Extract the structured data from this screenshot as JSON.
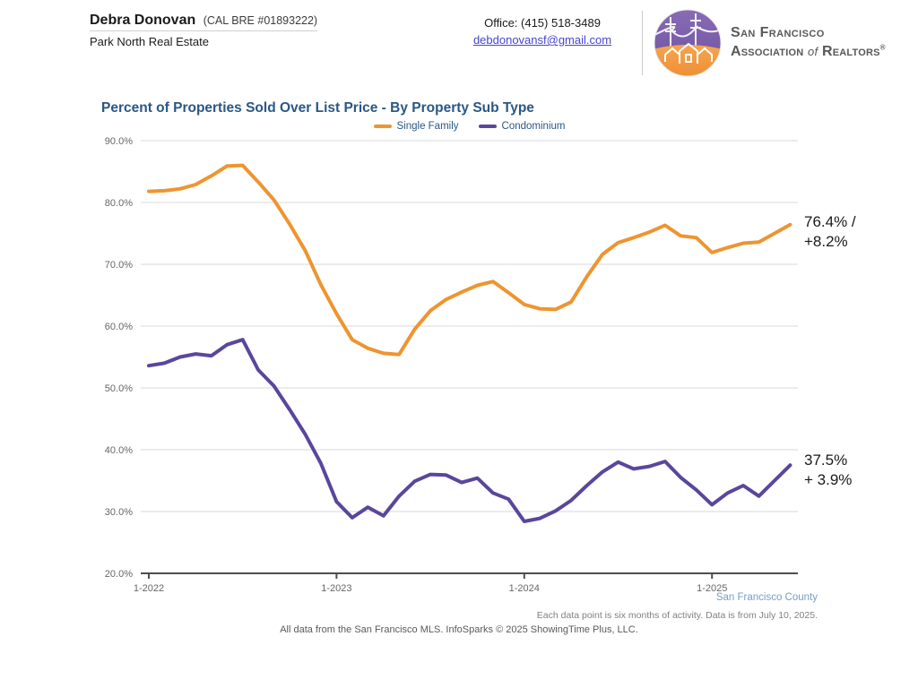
{
  "header": {
    "agent_name": "Debra Donovan",
    "agent_license": "(CAL BRE #01893222)",
    "company": "Park North Real Estate",
    "office_phone": "Office: (415) 518-3489",
    "email": "debdonovansf@gmail.com",
    "logo": {
      "line1": "San Francisco",
      "line2_pre": "Association ",
      "line2_of": "of",
      "line2_post": " Realtors",
      "registered": "®"
    }
  },
  "chart": {
    "title": "Percent of Properties Sold Over List Price - By Property Sub Type",
    "annotation_single_family": "76.4% /\n+8.2%",
    "annotation_condominium": "37.5%\n+ 3.9%",
    "footnote_county": "San Francisco County",
    "footnote_note": "Each data point is six months of activity. Data is from July 10, 2025.",
    "footnote_mls": "All data from the San Francisco MLS. InfoSparks © 2025 ShowingTime Plus, LLC."
  },
  "chart_data": {
    "type": "line",
    "title": "Percent of Properties Sold Over List Price - By Property Sub Type",
    "region": "San Francisco County",
    "x_frequency": "monthly",
    "x_start": "1-2022",
    "x_end": "6-2025",
    "x_tick_labels": [
      "1-2022",
      "1-2023",
      "1-2024",
      "1-2025"
    ],
    "x_tick_month_index": [
      0,
      12,
      24,
      36
    ],
    "y_tick_labels": [
      "90.0%",
      "80.0%",
      "70.0%",
      "60.0%",
      "50.0%",
      "40.0%",
      "30.0%",
      "20.0%"
    ],
    "y_tick_values": [
      90,
      80,
      70,
      60,
      50,
      40,
      30,
      20
    ],
    "ylim": [
      20,
      90
    ],
    "grid": "horizontal",
    "legend_position": "top-center",
    "colors": {
      "single_family": "#ED9531",
      "condominium": "#5A469C",
      "grid": "#DADADA",
      "axis": "#4D4D4D",
      "tick_text": "#666666"
    },
    "series": [
      {
        "name": "Single Family",
        "color": "#ED9531",
        "end_value_label": "76.4% / +8.2%",
        "values": [
          81.8,
          81.9,
          82.2,
          82.9,
          84.3,
          85.9,
          86.0,
          83.3,
          80.4,
          76.5,
          72.2,
          66.7,
          62.0,
          57.8,
          56.4,
          55.6,
          55.4,
          59.5,
          62.5,
          64.3,
          65.5,
          66.6,
          67.2,
          65.4,
          63.5,
          62.8,
          62.7,
          63.9,
          68.0,
          71.6,
          73.5,
          74.3,
          75.2,
          76.3,
          74.6,
          74.3,
          71.9,
          72.7,
          73.4,
          73.6,
          75.0,
          76.4
        ]
      },
      {
        "name": "Condominium",
        "color": "#5A469C",
        "end_value_label": "37.5% / + 3.9%",
        "values": [
          53.6,
          54.0,
          55.0,
          55.5,
          55.2,
          57.0,
          57.8,
          52.9,
          50.3,
          46.5,
          42.5,
          37.8,
          31.6,
          29.0,
          30.7,
          29.3,
          32.5,
          34.9,
          36.0,
          35.9,
          34.7,
          35.4,
          33.0,
          32.0,
          28.4,
          28.9,
          30.1,
          31.8,
          34.2,
          36.4,
          38.0,
          36.9,
          37.3,
          38.1,
          35.5,
          33.5,
          31.1,
          33.0,
          34.2,
          32.5,
          35.0,
          37.5
        ]
      }
    ]
  }
}
